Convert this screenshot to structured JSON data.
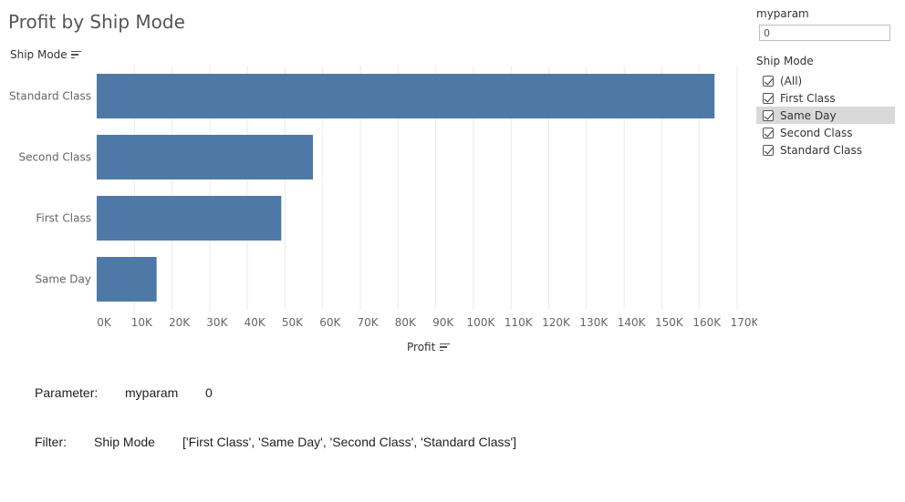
{
  "title": "Profit by Ship Mode",
  "row_header": "Ship Mode",
  "axis_title": "Profit",
  "parameter_control": {
    "label": "myparam",
    "value": "0"
  },
  "filter_control": {
    "title": "Ship Mode",
    "items": [
      {
        "label": "(All)",
        "checked": true
      },
      {
        "label": "First Class",
        "checked": true
      },
      {
        "label": "Same Day",
        "checked": true
      },
      {
        "label": "Second Class",
        "checked": true
      },
      {
        "label": "Standard Class",
        "checked": true
      }
    ]
  },
  "info": {
    "parameter_label": "Parameter:",
    "parameter_name": "myparam",
    "parameter_value": "0",
    "filter_label": "Filter:",
    "filter_field": "Ship Mode",
    "filter_value": "['First Class', 'Same Day', 'Second Class', 'Standard Class']"
  },
  "chart_data": {
    "type": "bar",
    "orientation": "horizontal",
    "categories": [
      "Standard Class",
      "Second Class",
      "First Class",
      "Same Day"
    ],
    "values": [
      164000,
      57400,
      49000,
      15900
    ],
    "xlim": [
      0,
      170000
    ],
    "ticks": [
      "0K",
      "10K",
      "20K",
      "30K",
      "40K",
      "50K",
      "60K",
      "70K",
      "80K",
      "90K",
      "100K",
      "110K",
      "120K",
      "130K",
      "140K",
      "150K",
      "160K",
      "170K"
    ],
    "grid": true,
    "bar_color": "#4e79a7"
  }
}
